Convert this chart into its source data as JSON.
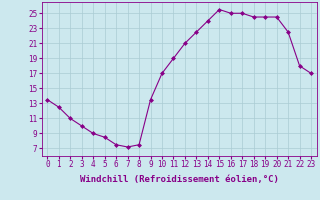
{
  "x": [
    0,
    1,
    2,
    3,
    4,
    5,
    6,
    7,
    8,
    9,
    10,
    11,
    12,
    13,
    14,
    15,
    16,
    17,
    18,
    19,
    20,
    21,
    22,
    23
  ],
  "y": [
    13.5,
    12.5,
    11.0,
    10.0,
    9.0,
    8.5,
    7.5,
    7.2,
    7.5,
    13.5,
    17.0,
    19.0,
    21.0,
    22.5,
    24.0,
    25.5,
    25.0,
    25.0,
    24.5,
    24.5,
    24.5,
    22.5,
    18.0,
    17.0
  ],
  "line_color": "#880088",
  "marker": "D",
  "marker_size": 2.0,
  "bg_color": "#cce8ee",
  "grid_color": "#aaccd4",
  "xlabel": "Windchill (Refroidissement éolien,°C)",
  "xlabel_fontsize": 6.5,
  "tick_fontsize": 5.5,
  "ylabel_ticks": [
    7,
    9,
    11,
    13,
    15,
    17,
    19,
    21,
    23,
    25
  ],
  "ylim": [
    6.0,
    26.5
  ],
  "xlim": [
    -0.5,
    23.5
  ],
  "xticks": [
    0,
    1,
    2,
    3,
    4,
    5,
    6,
    7,
    8,
    9,
    10,
    11,
    12,
    13,
    14,
    15,
    16,
    17,
    18,
    19,
    20,
    21,
    22,
    23
  ]
}
